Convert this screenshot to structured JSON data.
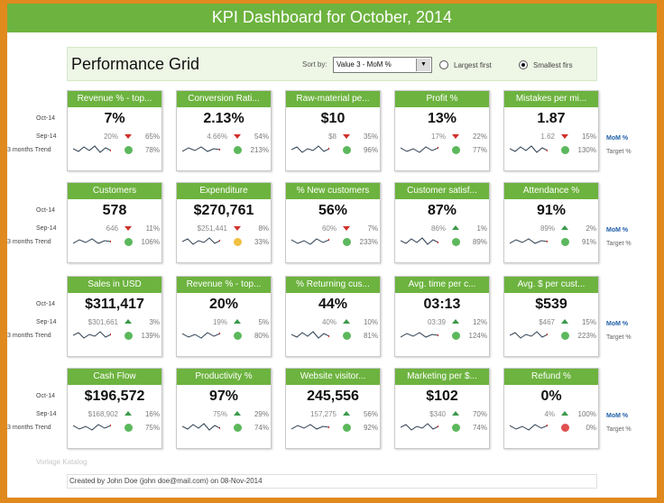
{
  "title": "KPI Dashboard for October, 2014",
  "grid": {
    "title": "Performance Grid",
    "sort_label": "Sort by:",
    "sort_value": "Value 3 - MoM %",
    "option_largest": "Largest first",
    "option_smallest": "Smallest firs",
    "selected_option": "smallest"
  },
  "row_labels": {
    "current": "Oct-14",
    "previous": "Sep-14",
    "trend": "3 months Trend"
  },
  "side_labels": {
    "mom": "MoM %",
    "target": "Target %"
  },
  "colors": {
    "accent": "#6db33f",
    "down": "#d0302a",
    "up": "#3a9a4a",
    "good": "#5cb85c",
    "warn": "#f0c040",
    "bad": "#e05050",
    "mom_label": "#1f5fa8"
  },
  "kpis": [
    {
      "title": "Revenue % - top...",
      "value": "7%",
      "previous": "20%",
      "direction": "down",
      "mom": "65%",
      "status": "good",
      "target": "78%"
    },
    {
      "title": "Conversion Rati...",
      "value": "2.13%",
      "previous": "4.66%",
      "direction": "down",
      "mom": "54%",
      "status": "good",
      "target": "213%"
    },
    {
      "title": "Raw-material pe...",
      "value": "$10",
      "previous": "$8",
      "direction": "down",
      "mom": "35%",
      "status": "good",
      "target": "96%"
    },
    {
      "title": "Profit %",
      "value": "13%",
      "previous": "17%",
      "direction": "down",
      "mom": "22%",
      "status": "good",
      "target": "77%"
    },
    {
      "title": "Mistakes per mi...",
      "value": "1.87",
      "previous": "1.62",
      "direction": "down",
      "mom": "15%",
      "status": "good",
      "target": "130%"
    },
    {
      "title": "Customers",
      "value": "578",
      "previous": "646",
      "direction": "down",
      "mom": "11%",
      "status": "good",
      "target": "106%"
    },
    {
      "title": "Expenditure",
      "value": "$270,761",
      "previous": "$251,441",
      "direction": "down",
      "mom": "8%",
      "status": "warn",
      "target": "33%"
    },
    {
      "title": "% New customers",
      "value": "56%",
      "previous": "60%",
      "direction": "down",
      "mom": "7%",
      "status": "good",
      "target": "233%"
    },
    {
      "title": "Customer satisf...",
      "value": "87%",
      "previous": "86%",
      "direction": "up",
      "mom": "1%",
      "status": "good",
      "target": "89%"
    },
    {
      "title": "Attendance %",
      "value": "91%",
      "previous": "89%",
      "direction": "up",
      "mom": "2%",
      "status": "good",
      "target": "91%"
    },
    {
      "title": "Sales in USD",
      "value": "$311,417",
      "previous": "$301,661",
      "direction": "up",
      "mom": "3%",
      "status": "good",
      "target": "139%"
    },
    {
      "title": "Revenue % - top...",
      "value": "20%",
      "previous": "19%",
      "direction": "up",
      "mom": "5%",
      "status": "good",
      "target": "80%"
    },
    {
      "title": "% Returning cus...",
      "value": "44%",
      "previous": "40%",
      "direction": "up",
      "mom": "10%",
      "status": "good",
      "target": "81%"
    },
    {
      "title": "Avg. time per c...",
      "value": "03:13",
      "previous": "03:39",
      "direction": "up",
      "mom": "12%",
      "status": "good",
      "target": "124%"
    },
    {
      "title": "Avg. $ per cust...",
      "value": "$539",
      "previous": "$467",
      "direction": "up",
      "mom": "15%",
      "status": "good",
      "target": "223%"
    },
    {
      "title": "Cash Flow",
      "value": "$196,572",
      "previous": "$168,902",
      "direction": "up",
      "mom": "16%",
      "status": "good",
      "target": "75%"
    },
    {
      "title": "Productivity %",
      "value": "97%",
      "previous": "75%",
      "direction": "up",
      "mom": "29%",
      "status": "good",
      "target": "74%"
    },
    {
      "title": "Website visitor...",
      "value": "245,556",
      "previous": "157,275",
      "direction": "up",
      "mom": "56%",
      "status": "good",
      "target": "92%"
    },
    {
      "title": "Marketing per $...",
      "value": "$102",
      "previous": "$340",
      "direction": "up",
      "mom": "70%",
      "status": "good",
      "target": "74%"
    },
    {
      "title": "Refund %",
      "value": "0%",
      "previous": "4%",
      "direction": "up",
      "mom": "100%",
      "status": "bad",
      "target": "0%"
    }
  ],
  "watermark": "Vorlage Katalog",
  "footer": "Created by John Doe (john doe@mail.com) on 08-Nov-2014"
}
